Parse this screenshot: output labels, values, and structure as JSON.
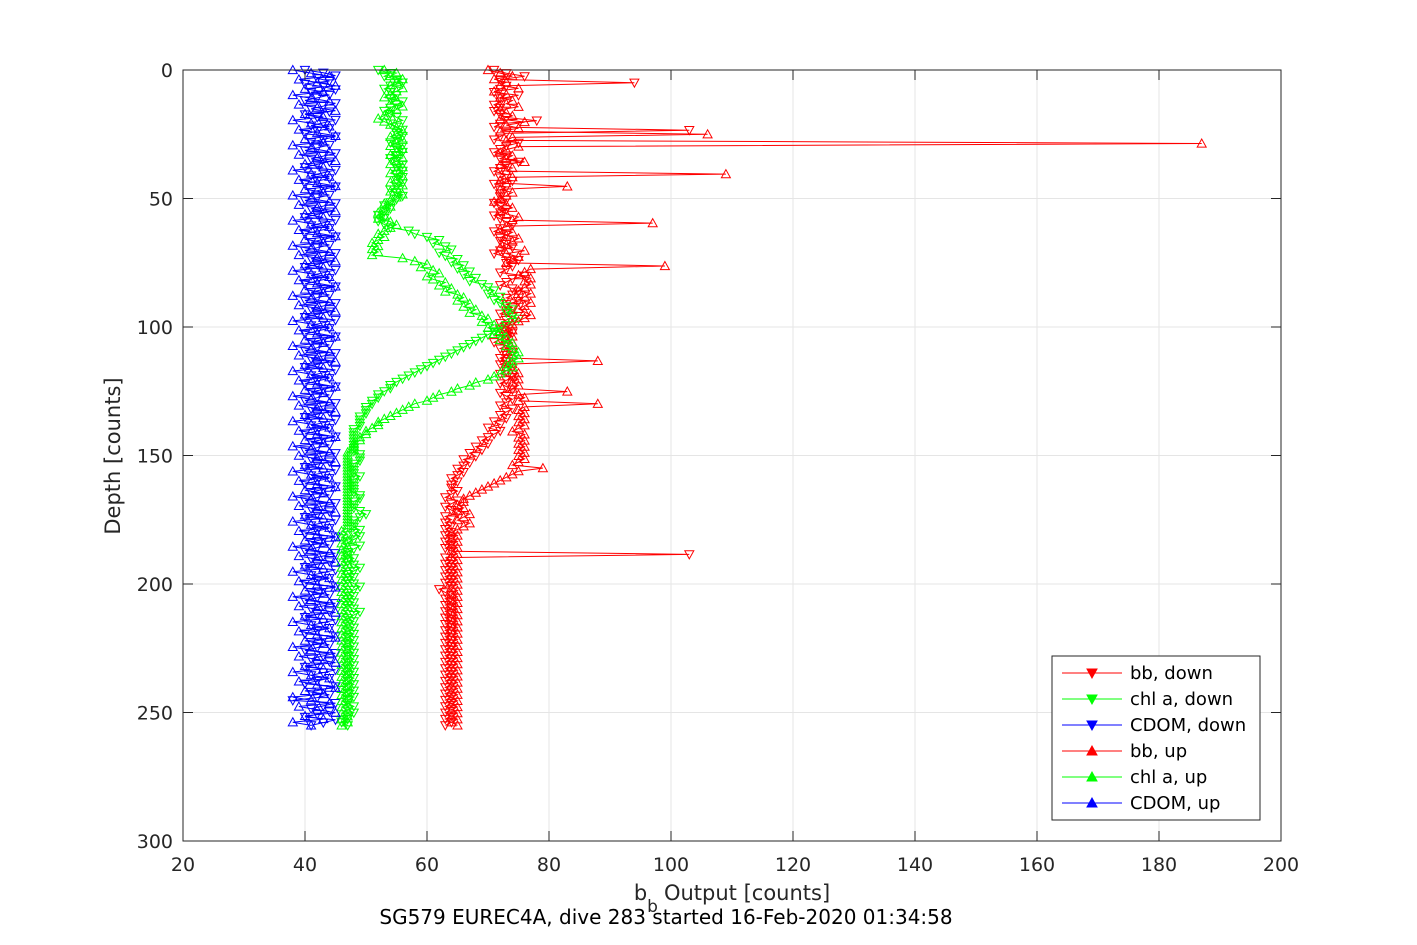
{
  "chart_data": {
    "type": "line",
    "title": "SG579 EUREC4A, dive 283 started 16-Feb-2020 01:34:58",
    "xlabel": "Output [counts]",
    "xlabel_prefix": "b",
    "xlabel_subscript": "b",
    "ylabel": "Depth [counts]",
    "xlim": [
      20,
      200
    ],
    "ylim": [
      0,
      300
    ],
    "y_reversed": true,
    "grid": true,
    "legend_position": "bottom-right",
    "x_ticks": [
      "20",
      "40",
      "60",
      "80",
      "100",
      "120",
      "140",
      "160",
      "180",
      "200"
    ],
    "y_ticks": [
      "0",
      "50",
      "100",
      "150",
      "200",
      "250",
      "300"
    ],
    "depth_step": 2.5,
    "series": [
      {
        "name": "bb, down",
        "color": "#ff0000",
        "marker": "triangle-down",
        "depth_start": 0,
        "depth_end": 255,
        "values": [
          71,
          73,
          76,
          72,
          94,
          73,
          72,
          71,
          75,
          72,
          72,
          71,
          72,
          71,
          72,
          73,
          78,
          72,
          71,
          103,
          73,
          72,
          71,
          75,
          73,
          72,
          71,
          73,
          72,
          75,
          73,
          72,
          71,
          73,
          72,
          74,
          71,
          73,
          72,
          72,
          72,
          73,
          71,
          72,
          73,
          72,
          71,
          72,
          73,
          74,
          72,
          71,
          73,
          72,
          72,
          73,
          74,
          72,
          71,
          73,
          75,
          73,
          74,
          73,
          72,
          76,
          74,
          73,
          72,
          74,
          75,
          74,
          73,
          75,
          73,
          74,
          73,
          72,
          74,
          73,
          72,
          73,
          72,
          74,
          73,
          72,
          71,
          73,
          72,
          74,
          73,
          72,
          73,
          72,
          74,
          73,
          72,
          74,
          73,
          72,
          73,
          74,
          72,
          73,
          74,
          73,
          72,
          74,
          73,
          72,
          73,
          71,
          72,
          70,
          72,
          71,
          70,
          69,
          70,
          68,
          69,
          67,
          68,
          66,
          67,
          66,
          65,
          66,
          65,
          64,
          65,
          64,
          64,
          65,
          64,
          63,
          65,
          64,
          63,
          64,
          65,
          63,
          64,
          63,
          64,
          63,
          64,
          63,
          64,
          63,
          64,
          63,
          64,
          103,
          63,
          64,
          63,
          64,
          63,
          64,
          63,
          64,
          63,
          64,
          62,
          63,
          64,
          63,
          64,
          63,
          64,
          63,
          64,
          63,
          64,
          63,
          64,
          63,
          64,
          63,
          64,
          63,
          64,
          63,
          64,
          63,
          64,
          63,
          64,
          63,
          64,
          63,
          64,
          63,
          64,
          63,
          64,
          63,
          64,
          63,
          64,
          63,
          64,
          63,
          64,
          63,
          64,
          63
        ]
      },
      {
        "name": "chl a, down",
        "color": "#00ff00",
        "marker": "triangle-down",
        "depth_start": 0,
        "depth_end": 255,
        "values": [
          52,
          54,
          53,
          55,
          56,
          54,
          53,
          54,
          55,
          54,
          56,
          55,
          54,
          53,
          54,
          55,
          56,
          54,
          55,
          56,
          55,
          56,
          55,
          54,
          56,
          55,
          56,
          55,
          54,
          55,
          56,
          55,
          56,
          55,
          56,
          55,
          56,
          55,
          54,
          55,
          56,
          55,
          54,
          53,
          54,
          53,
          52,
          53,
          52,
          53,
          54,
          57,
          58,
          60,
          62,
          61,
          63,
          64,
          62,
          63,
          65,
          64,
          66,
          65,
          67,
          66,
          68,
          67,
          69,
          70,
          71,
          70,
          72,
          71,
          72,
          73,
          74,
          73,
          74,
          75,
          74,
          73,
          72,
          71,
          70,
          69,
          68,
          67,
          66,
          65,
          64,
          63,
          62,
          61,
          60,
          59,
          58,
          57,
          56,
          55,
          54,
          54,
          53,
          52,
          52,
          51,
          51,
          50,
          50,
          50,
          49,
          49,
          49,
          49,
          48,
          48,
          48,
          48,
          48,
          48,
          48,
          48,
          49,
          49,
          49,
          48,
          48,
          48,
          48,
          49,
          48,
          48,
          48,
          48,
          48,
          49,
          49,
          48,
          48,
          48,
          49,
          50,
          49,
          48,
          48,
          48,
          49,
          48,
          49,
          48,
          47,
          49,
          48,
          47,
          47,
          48,
          47,
          48,
          49,
          48,
          47,
          48,
          47,
          48,
          49,
          48,
          47,
          48,
          47,
          48,
          47,
          48,
          49,
          48,
          47,
          48,
          47,
          48,
          47,
          48,
          47,
          48,
          47,
          48,
          47,
          48,
          47,
          48,
          47,
          48,
          47,
          48,
          47,
          48,
          47,
          48,
          47,
          48,
          47,
          48,
          47,
          47,
          48,
          47,
          48,
          47,
          47,
          46,
          47
        ]
      },
      {
        "name": "CDOM, down",
        "color": "#0000ff",
        "marker": "triangle-down",
        "depth_start": 0,
        "depth_end": 255,
        "values": [
          40,
          43,
          45,
          42,
          44,
          40,
          43,
          45,
          41,
          44,
          42,
          40,
          45,
          43,
          41,
          44,
          40,
          42,
          45,
          43,
          41,
          44,
          42,
          40,
          45,
          43,
          41,
          44,
          42,
          40,
          45,
          43,
          41,
          44,
          42,
          40,
          45,
          43,
          41,
          44,
          42,
          40,
          45,
          43,
          41,
          44,
          42,
          40,
          45,
          43,
          41,
          44,
          42,
          40,
          45,
          43,
          41,
          44,
          42,
          40,
          45,
          43,
          41,
          44,
          42,
          40,
          45,
          43,
          41,
          44,
          42,
          40,
          45,
          43,
          41,
          44,
          42,
          40,
          45,
          43,
          41,
          44,
          42,
          40,
          45,
          43,
          41,
          44,
          42,
          40,
          45,
          43,
          41,
          44,
          42,
          40,
          45,
          43,
          41,
          44,
          42,
          40,
          45,
          43,
          41,
          44,
          42,
          40,
          45,
          43,
          41,
          44,
          42,
          40,
          45,
          43,
          41,
          44,
          42,
          40,
          45,
          43,
          41,
          44,
          42,
          40,
          45,
          43,
          41,
          44,
          42,
          40,
          45,
          43,
          41,
          44,
          42,
          40,
          45,
          43,
          41,
          44,
          42,
          40,
          45,
          43,
          41,
          44,
          42,
          40,
          45,
          43,
          41,
          44,
          42,
          40,
          45,
          43,
          41,
          44,
          42,
          40,
          45,
          43,
          41,
          44,
          42,
          40,
          45,
          43,
          41,
          44,
          42,
          40,
          45,
          43,
          41,
          44,
          42,
          40,
          45,
          43,
          41,
          44,
          42,
          40,
          45,
          43,
          41,
          44,
          42,
          40,
          45,
          43,
          41,
          44,
          42,
          40,
          45,
          43,
          41,
          44,
          42,
          40,
          45,
          43,
          41,
          44,
          42,
          40,
          45,
          43,
          41,
          44,
          42,
          40,
          45,
          43,
          41,
          44,
          42,
          40,
          45,
          43,
          41,
          44,
          42,
          38,
          45,
          43,
          41,
          44,
          42,
          40,
          45,
          43,
          41
        ]
      },
      {
        "name": "bb, up",
        "color": "#ff0000",
        "marker": "triangle-up",
        "depth_start": 0,
        "depth_end": 255,
        "values": [
          70,
          72,
          74,
          71,
          73,
          72,
          75,
          71,
          73,
          72,
          74,
          73,
          75,
          72,
          73,
          74,
          72,
          76,
          73,
          75,
          72,
          106,
          74,
          73,
          187,
          75,
          73,
          72,
          74,
          73,
          76,
          72,
          74,
          73,
          109,
          74,
          72,
          73,
          83,
          72,
          74,
          73,
          72,
          71,
          73,
          74,
          72,
          73,
          75,
          74,
          97,
          73,
          72,
          74,
          73,
          75,
          74,
          73,
          72,
          76,
          73,
          75,
          74,
          73,
          99,
          77,
          76,
          75,
          77,
          76,
          77,
          76,
          75,
          77,
          76,
          75,
          77,
          76,
          75,
          76,
          77,
          76,
          75,
          74,
          73,
          74,
          73,
          74,
          73,
          74,
          73,
          74,
          73,
          74,
          73,
          88,
          74,
          73,
          74,
          75,
          74,
          75,
          74,
          75,
          74,
          83,
          75,
          76,
          75,
          88,
          76,
          75,
          76,
          75,
          76,
          75,
          76,
          75,
          74,
          76,
          75,
          76,
          75,
          76,
          75,
          76,
          75,
          76,
          75,
          74,
          79,
          75,
          74,
          73,
          72,
          71,
          70,
          69,
          68,
          67,
          66,
          66,
          65,
          66,
          65,
          67,
          66,
          65,
          67,
          66,
          65,
          64,
          65,
          64,
          65,
          64,
          65,
          64,
          65,
          64,
          65,
          64,
          65,
          64,
          65,
          64,
          65,
          64,
          65,
          64,
          65,
          64,
          65,
          64,
          65,
          64,
          65,
          64,
          65,
          64,
          65,
          64,
          65,
          64,
          65,
          64,
          65,
          64,
          65,
          64,
          65,
          64,
          65,
          64,
          65,
          64,
          65,
          64,
          65,
          64,
          65,
          64,
          65,
          64,
          65,
          64,
          65,
          64,
          65,
          64,
          65,
          64,
          65,
          64,
          65
        ]
      },
      {
        "name": "chl a, up",
        "color": "#00ff00",
        "marker": "triangle-up",
        "depth_start": 0,
        "depth_end": 255,
        "values": [
          53,
          55,
          54,
          56,
          55,
          54,
          56,
          55,
          54,
          53,
          55,
          54,
          56,
          55,
          54,
          53,
          52,
          53,
          54,
          55,
          56,
          55,
          54,
          56,
          55,
          54,
          56,
          55,
          54,
          56,
          55,
          54,
          56,
          55,
          54,
          56,
          55,
          54,
          56,
          55,
          54,
          56,
          55,
          54,
          53,
          54,
          53,
          52,
          53,
          52,
          54,
          55,
          54,
          53,
          52,
          53,
          52,
          51,
          52,
          51,
          52,
          51,
          56,
          58,
          60,
          59,
          61,
          62,
          60,
          61,
          63,
          62,
          64,
          63,
          65,
          66,
          65,
          67,
          66,
          68,
          67,
          69,
          70,
          69,
          71,
          70,
          72,
          71,
          73,
          72,
          74,
          73,
          74,
          75,
          74,
          75,
          74,
          73,
          74,
          73,
          72,
          71,
          70,
          68,
          67,
          65,
          64,
          62,
          61,
          60,
          58,
          57,
          56,
          55,
          54,
          53,
          52,
          52,
          51,
          50,
          50,
          49,
          49,
          48,
          48,
          48,
          47,
          47,
          47,
          47,
          47,
          47,
          47,
          47,
          47,
          47,
          47,
          47,
          47,
          47,
          47,
          47,
          47,
          47,
          47,
          47,
          47,
          47,
          47,
          47,
          47,
          47,
          46,
          47,
          46,
          47,
          46,
          47,
          46,
          47,
          46,
          47,
          46,
          47,
          46,
          47,
          46,
          47,
          46,
          47,
          46,
          47,
          46,
          47,
          46,
          47,
          46,
          47,
          46,
          47,
          46,
          47,
          46,
          47,
          46,
          47,
          46,
          47,
          46,
          47,
          46,
          47,
          46,
          47,
          46,
          47,
          46,
          47,
          46,
          47,
          46,
          47,
          46,
          47,
          46,
          47,
          46,
          47,
          46,
          47,
          46,
          47,
          46,
          47,
          46,
          47,
          46
        ]
      },
      {
        "name": "CDOM, up",
        "color": "#0000ff",
        "marker": "triangle-up",
        "depth_start": 0,
        "depth_end": 255,
        "values": [
          38,
          41,
          44,
          39,
          42,
          45,
          40,
          43,
          38,
          41,
          44,
          39,
          42,
          45,
          40,
          43,
          38,
          41,
          44,
          39,
          42,
          45,
          40,
          43,
          38,
          41,
          44,
          39,
          42,
          45,
          40,
          43,
          38,
          41,
          44,
          39,
          42,
          45,
          40,
          43,
          38,
          41,
          44,
          39,
          42,
          45,
          40,
          43,
          38,
          41,
          44,
          39,
          42,
          45,
          40,
          43,
          38,
          41,
          44,
          39,
          42,
          45,
          40,
          43,
          38,
          41,
          44,
          39,
          42,
          45,
          40,
          43,
          38,
          41,
          44,
          39,
          42,
          45,
          40,
          43,
          38,
          41,
          44,
          39,
          42,
          45,
          40,
          43,
          38,
          41,
          44,
          39,
          42,
          45,
          40,
          43,
          38,
          41,
          44,
          39,
          42,
          45,
          40,
          43,
          38,
          41,
          44,
          39,
          42,
          45,
          40,
          43,
          38,
          41,
          44,
          39,
          42,
          45,
          40,
          43,
          38,
          41,
          44,
          39,
          42,
          45,
          40,
          43,
          38,
          41,
          44,
          39,
          42,
          45,
          40,
          43,
          38,
          41,
          44,
          39,
          42,
          45,
          40,
          43,
          38,
          41,
          44,
          39,
          42,
          45,
          40,
          43,
          38,
          41,
          44,
          39,
          42,
          45,
          40,
          43,
          38,
          41,
          44,
          39,
          42,
          45,
          40,
          43,
          38,
          41,
          44,
          39,
          42,
          45,
          40,
          43,
          38,
          41,
          44,
          39,
          42,
          45,
          40,
          43,
          38,
          41,
          44,
          39,
          42,
          45,
          40,
          43,
          38,
          41,
          44,
          39,
          42,
          45,
          40,
          43,
          38,
          41,
          44,
          39,
          42,
          45,
          40,
          43,
          38,
          41
        ]
      }
    ]
  }
}
